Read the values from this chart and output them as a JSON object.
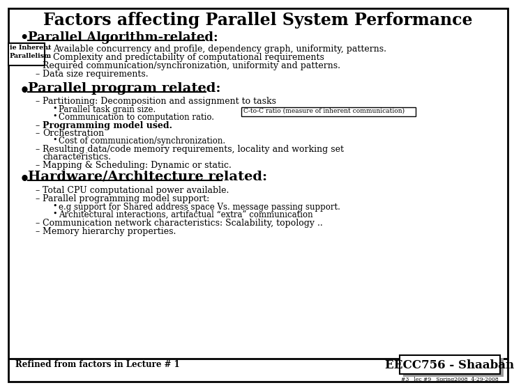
{
  "title": "Factors affecting Parallel System Performance",
  "bg_color": "#ffffff",
  "title_fontsize": 17,
  "header_fontsize": 13,
  "body_fontsize": 9,
  "small_fontsize": 7,
  "algo_items": [
    "Available concurrency and profile, dependency graph, uniformity, patterns.",
    "Complexity and predictability of computational requirements",
    "Required communication/synchronization, uniformity and patterns.",
    "Data size requirements."
  ],
  "side_label_line1": "ie Inherent",
  "side_label_line2": "Parallelism",
  "prog_header": "Parallel program related:",
  "prog_sub1": "Parallel task grain size.",
  "prog_sub2": "Communication to computation ratio.",
  "prog_sub3": "Cost of communication/synchronization.",
  "ctoc_label": "C-to-C ratio (measure of inherent communication)",
  "hw_header": "Hardware/Architecture related:",
  "hw_sub1": "e.g support for Shared address space Vs. message passing support.",
  "hw_sub2": "Architectural interactions, artifactual “extra” communication",
  "footer_left": "Refined from factors in Lecture # 1",
  "footer_right": "EECC756 - Shaaban",
  "footer_sub": "#3   lec #9   Spring2008  4-29-2008"
}
